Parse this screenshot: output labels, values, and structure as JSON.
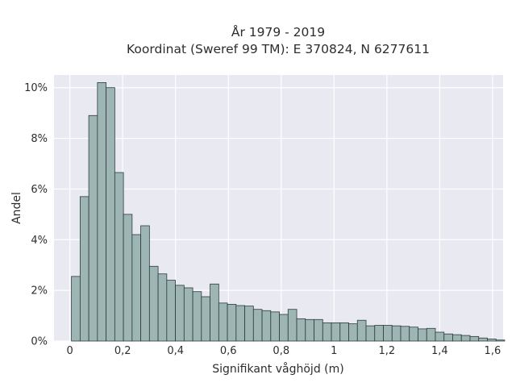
{
  "chart_data": {
    "type": "bar",
    "title_lines": [
      "År 1979 - 2019",
      "Koordinat (Sweref 99 TM): E 370824, N 6277611"
    ],
    "xlabel": "Signifikant våghöjd (m)",
    "ylabel": "Andel",
    "xlim": [
      -0.06,
      1.64
    ],
    "ylim": [
      0,
      10.5
    ],
    "x_ticks": [
      0,
      0.2,
      0.4,
      0.6,
      0.8,
      1.0,
      1.2,
      1.4,
      1.6
    ],
    "x_tick_labels": [
      "0",
      "0,2",
      "0,4",
      "0,6",
      "0,8",
      "1",
      "1,2",
      "1,4",
      "1,6"
    ],
    "y_ticks": [
      0,
      2,
      4,
      6,
      8,
      10
    ],
    "y_tick_labels": [
      "0%",
      "2%",
      "4%",
      "6%",
      "8%",
      "10%"
    ],
    "bin_width": 0.0328,
    "bin_start": 0.006,
    "values": [
      2.55,
      5.7,
      8.9,
      10.2,
      10.0,
      6.65,
      5.0,
      4.2,
      4.55,
      2.95,
      2.65,
      2.4,
      2.2,
      2.1,
      1.95,
      1.75,
      2.25,
      1.5,
      1.45,
      1.4,
      1.38,
      1.25,
      1.2,
      1.15,
      1.05,
      1.25,
      0.88,
      0.85,
      0.85,
      0.72,
      0.72,
      0.72,
      0.68,
      0.82,
      0.6,
      0.62,
      0.62,
      0.6,
      0.58,
      0.55,
      0.48,
      0.5,
      0.35,
      0.28,
      0.25,
      0.22,
      0.18,
      0.12,
      0.08,
      0.04
    ],
    "bar_color": "#9db6b4",
    "bar_edge_color": "#2e3b3a",
    "plot_background": "#e8e9f1",
    "grid": true,
    "legend": "none"
  }
}
